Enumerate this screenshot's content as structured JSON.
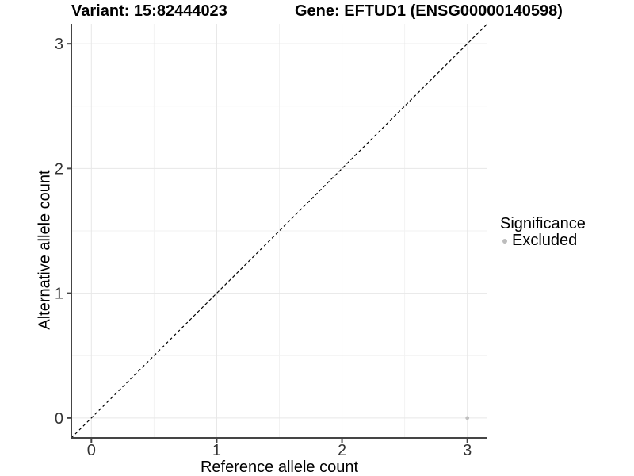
{
  "chart_data": {
    "type": "scatter",
    "title_left": "Variant: 15:82444023",
    "title_right": "Gene: EFTUD1 (ENSG00000140598)",
    "xlabel": "Reference allele count",
    "ylabel": "Alternative allele count",
    "xlim": [
      -0.16,
      3.16
    ],
    "ylim": [
      -0.16,
      3.16
    ],
    "x_ticks": [
      0,
      1,
      2,
      3
    ],
    "y_ticks": [
      0,
      1,
      2,
      3
    ],
    "minor_ticks": [
      0.5,
      1.5,
      2.5
    ],
    "grid": true,
    "points": [
      {
        "x": 3,
        "y": 0,
        "series": "Excluded"
      }
    ],
    "identity_line": {
      "style": "dashed",
      "from": [
        -0.16,
        -0.16
      ],
      "to": [
        3.16,
        3.16
      ],
      "color": "#000000"
    },
    "legend": {
      "title": "Significance",
      "position": "right",
      "items": [
        {
          "label": "Excluded",
          "color": "#bdbdbd"
        }
      ]
    },
    "colors": {
      "point": "#c0c0c0",
      "grid_major": "#e7e7e7",
      "grid_minor": "#f2f2f2",
      "axis_line": "#454545",
      "tick_label": "#333333",
      "text": "#000000",
      "background": "#ffffff"
    }
  }
}
